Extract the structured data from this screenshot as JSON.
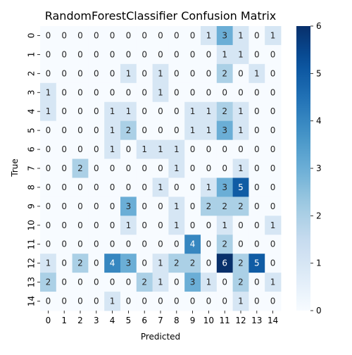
{
  "chart_data": {
    "type": "heatmap",
    "title": "RandomForestClassifier Confusion Matrix",
    "xlabel": "Predicted",
    "ylabel": "True",
    "x_categories": [
      "0",
      "1",
      "2",
      "3",
      "4",
      "5",
      "6",
      "7",
      "8",
      "9",
      "10",
      "11",
      "12",
      "13",
      "14"
    ],
    "y_categories": [
      "0",
      "1",
      "2",
      "3",
      "4",
      "5",
      "6",
      "7",
      "8",
      "9",
      "10",
      "11",
      "12",
      "13",
      "14"
    ],
    "matrix": [
      [
        0,
        0,
        0,
        0,
        0,
        0,
        0,
        0,
        0,
        0,
        1,
        3,
        1,
        0,
        1
      ],
      [
        0,
        0,
        0,
        0,
        0,
        0,
        0,
        0,
        0,
        0,
        0,
        1,
        1,
        0,
        0
      ],
      [
        0,
        0,
        0,
        0,
        0,
        1,
        0,
        1,
        0,
        0,
        0,
        2,
        0,
        1,
        0
      ],
      [
        1,
        0,
        0,
        0,
        0,
        0,
        0,
        1,
        0,
        0,
        0,
        0,
        0,
        0,
        0
      ],
      [
        1,
        0,
        0,
        0,
        1,
        1,
        0,
        0,
        0,
        1,
        1,
        2,
        1,
        0,
        0
      ],
      [
        0,
        0,
        0,
        0,
        1,
        2,
        0,
        0,
        0,
        1,
        1,
        3,
        1,
        0,
        0
      ],
      [
        0,
        0,
        0,
        0,
        1,
        0,
        1,
        1,
        1,
        0,
        0,
        0,
        0,
        0,
        0
      ],
      [
        0,
        0,
        2,
        0,
        0,
        0,
        0,
        0,
        1,
        0,
        0,
        0,
        1,
        0,
        0
      ],
      [
        0,
        0,
        0,
        0,
        0,
        0,
        0,
        1,
        0,
        0,
        1,
        3,
        5,
        0,
        0
      ],
      [
        0,
        0,
        0,
        0,
        0,
        3,
        0,
        0,
        1,
        0,
        2,
        2,
        2,
        0,
        0
      ],
      [
        0,
        0,
        0,
        0,
        0,
        1,
        0,
        0,
        1,
        0,
        0,
        1,
        0,
        0,
        1
      ],
      [
        0,
        0,
        0,
        0,
        0,
        0,
        0,
        0,
        0,
        4,
        0,
        2,
        0,
        0,
        0
      ],
      [
        1,
        0,
        2,
        0,
        4,
        3,
        0,
        1,
        2,
        2,
        0,
        6,
        2,
        5,
        0
      ],
      [
        2,
        0,
        0,
        0,
        0,
        0,
        2,
        1,
        0,
        3,
        1,
        0,
        2,
        0,
        1
      ],
      [
        0,
        0,
        0,
        0,
        1,
        0,
        0,
        0,
        0,
        0,
        0,
        0,
        1,
        0,
        0
      ]
    ],
    "colorbar": {
      "min": 0,
      "max": 6,
      "ticks": [
        0,
        1,
        2,
        3,
        4,
        5,
        6
      ],
      "colormap": "Blues"
    },
    "annotations": true,
    "grid": false
  }
}
